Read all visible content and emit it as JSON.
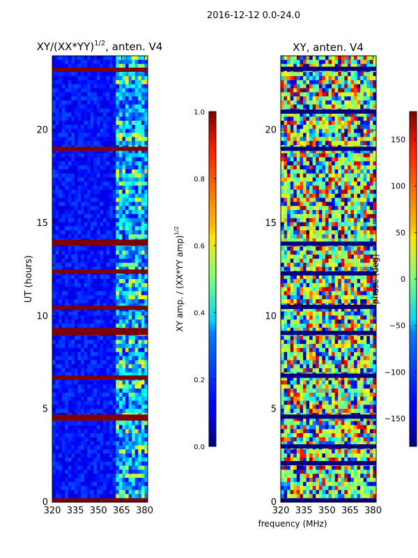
{
  "figure_title": "2016-12-12 0.0-24.0",
  "chart_data": [
    {
      "type": "heatmap",
      "panel": "left",
      "title": "XY/(XX*YY)^{1/2}, anten. V4",
      "title_main": "XY/(XX*YY)",
      "title_sup": "1/2",
      "title_tail": ", anten. V4",
      "xlabel": "",
      "ylabel": "UT (hours)",
      "xlim": [
        320,
        382
      ],
      "ylim": [
        0,
        24
      ],
      "x_ticks": [
        "320",
        "335",
        "350",
        "365",
        "380"
      ],
      "x_tick_values": [
        320,
        335,
        350,
        365,
        380
      ],
      "y_ticks": [
        "0",
        "5",
        "10",
        "15",
        "20"
      ],
      "y_tick_values": [
        0,
        5,
        10,
        15,
        20
      ],
      "colormap": "jet",
      "colorbar": {
        "label": "XY amp. / (XX*YY amp)^{1/2}",
        "label_main": "XY amp. / (XX*YY amp)",
        "label_sup": "1/2",
        "range": [
          0.0,
          1.0
        ],
        "ticks": [
          "0.0",
          "0.2",
          "0.4",
          "0.6",
          "0.8",
          "1.0"
        ],
        "tick_values": [
          0.0,
          0.2,
          0.4,
          0.6,
          0.8,
          1.0
        ]
      },
      "flagged_hours_value": 1.0,
      "flagged_hours": [
        0.1,
        4.5,
        4.6,
        6.7,
        9.1,
        9.25,
        10.45,
        12.4,
        13.9,
        14.0,
        19.0,
        23.25
      ]
    },
    {
      "type": "heatmap",
      "panel": "right",
      "title": "XY, anten. V4",
      "xlabel": "frequency (MHz)",
      "ylabel": "",
      "xlim": [
        320,
        382
      ],
      "ylim": [
        0,
        24
      ],
      "x_ticks": [
        "320",
        "335",
        "350",
        "365",
        "380"
      ],
      "x_tick_values": [
        320,
        335,
        350,
        365,
        380
      ],
      "y_ticks": [
        "0",
        "5",
        "10",
        "15",
        "20"
      ],
      "y_tick_values": [
        0,
        5,
        10,
        15,
        20
      ],
      "colormap": "jet",
      "colorbar": {
        "label": "phase (deg)",
        "range": [
          -180,
          180
        ],
        "ticks": [
          "−150",
          "−100",
          "−50",
          "0",
          "50",
          "100",
          "150"
        ],
        "tick_values": [
          -150,
          -100,
          -50,
          0,
          50,
          100,
          150
        ]
      },
      "flagged_hours_value": -180,
      "flagged_hours": [
        0.1,
        2.1,
        3.0,
        4.6,
        6.8,
        9.1,
        10.5,
        12.3,
        13.9,
        19.0,
        21.0,
        23.3
      ]
    }
  ]
}
